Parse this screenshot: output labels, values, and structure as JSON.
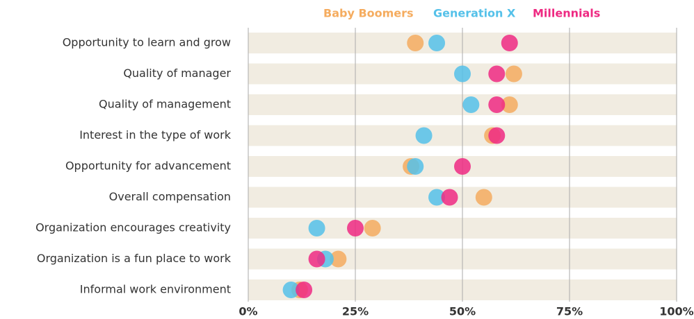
{
  "chart_data": {
    "type": "dot",
    "categories": [
      "Opportunity to learn and grow",
      "Quality of manager",
      "Quality of management",
      "Interest in the type of work",
      "Opportunity for advancement",
      "Overall compensation",
      "Organization encourages creativity",
      "Organization is a fun place to work",
      "Informal work environment"
    ],
    "series": [
      {
        "name": "Baby Boomers",
        "color": "#f5ac5f",
        "values": [
          39,
          62,
          61,
          57,
          38,
          55,
          29,
          21,
          12
        ]
      },
      {
        "name": "Generation X",
        "color": "#55c1e9",
        "values": [
          44,
          50,
          52,
          41,
          39,
          44,
          16,
          18,
          10
        ]
      },
      {
        "name": "Millennials",
        "color": "#ee2a82",
        "values": [
          61,
          58,
          58,
          58,
          50,
          47,
          25,
          16,
          13
        ]
      }
    ],
    "xlim": [
      0,
      100
    ],
    "xticks": [
      {
        "value": 0,
        "label": "0%"
      },
      {
        "value": 25,
        "label": "25%"
      },
      {
        "value": 50,
        "label": "50%"
      },
      {
        "value": 75,
        "label": "75%"
      },
      {
        "value": 100,
        "label": "100%"
      }
    ],
    "grid": true
  }
}
